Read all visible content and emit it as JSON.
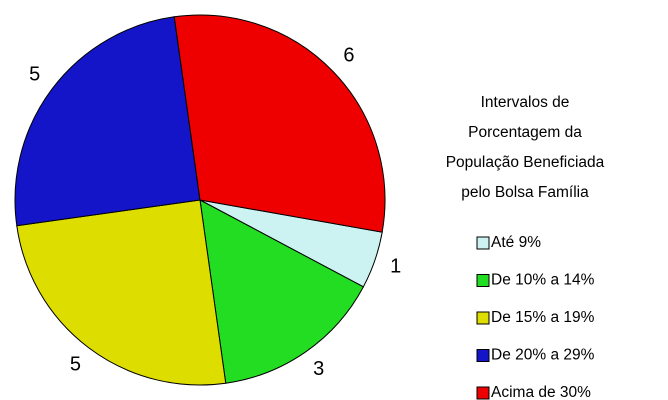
{
  "chart_data": {
    "type": "pie",
    "legend_title": "Intervalos de Porcentagem da População Beneficiada pelo Bolsa Família",
    "categories": [
      "Até 9%",
      "De 10% a 14%",
      "De 15% a 19%",
      "De 20% a 29%",
      "Acima de 30%"
    ],
    "values": [
      1,
      3,
      5,
      5,
      6
    ],
    "colors": [
      "#ccf2f2",
      "#22dd22",
      "#dddd00",
      "#1414c8",
      "#ee0000"
    ],
    "legend": "right"
  }
}
